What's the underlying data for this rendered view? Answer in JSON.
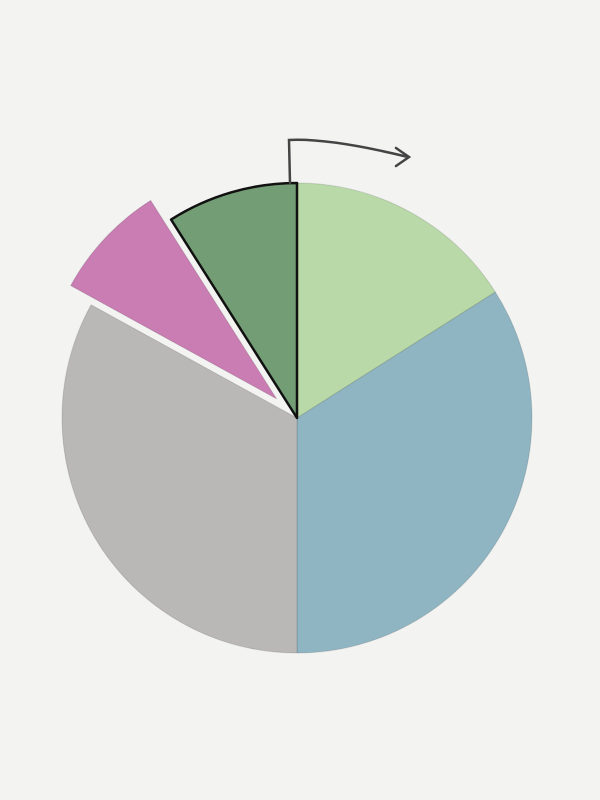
{
  "chart_data": {
    "type": "pie",
    "values": [
      16,
      34,
      33,
      8,
      9
    ],
    "colors": [
      "#b9d9a8",
      "#8fb5c2",
      "#bab8b6",
      "#c97db2",
      "#739d74"
    ],
    "explode": [
      false,
      false,
      false,
      true,
      false
    ],
    "outline": [
      false,
      false,
      false,
      false,
      true
    ]
  }
}
